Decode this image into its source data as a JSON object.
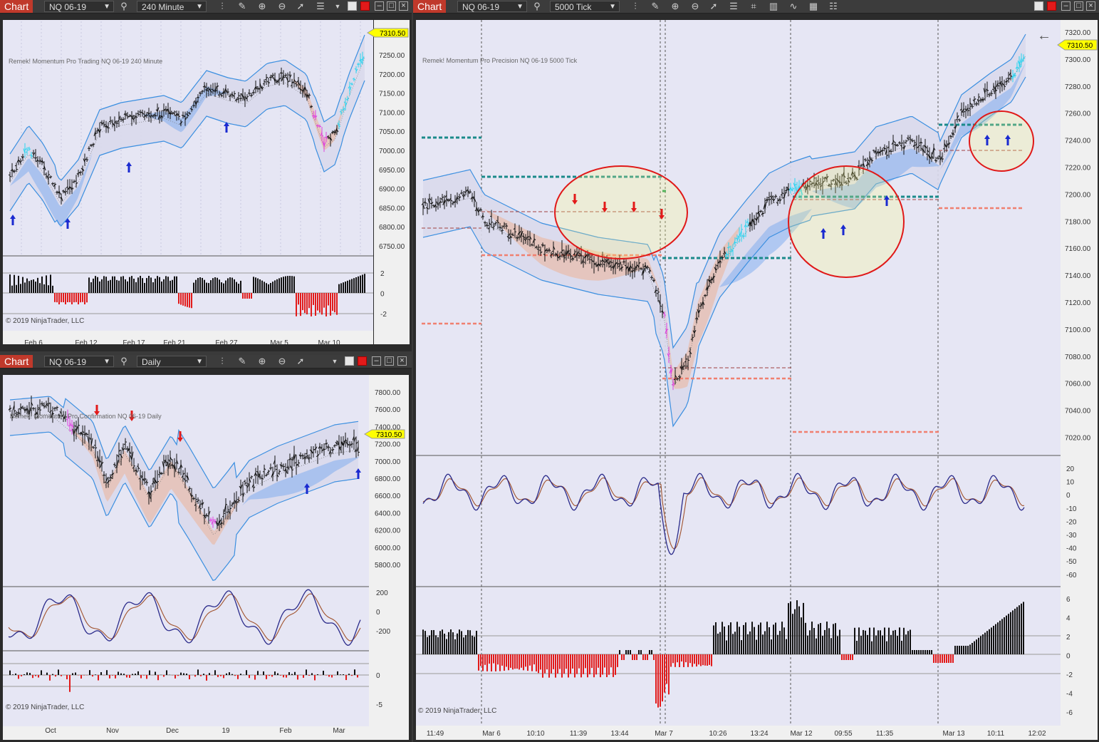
{
  "windows": [
    {
      "id": "w1",
      "title": "Chart",
      "instrument": "NQ 06-19",
      "period": "240 Minute",
      "indicator_label": "Remek!  Momentum Pro Trading  NQ 06-19  240 Minute",
      "copyright": "© 2019 NinjaTrader, LLC",
      "last_price": "7310.50",
      "price_ticks": [
        "7250.00",
        "7200.00",
        "7150.00",
        "7100.00",
        "7050.00",
        "7000.00",
        "6950.00",
        "6900.00",
        "6850.00",
        "6800.00",
        "6750.00"
      ],
      "sub_ticks": [
        "2",
        "0",
        "-2"
      ],
      "x_ticks": [
        "Feb 6",
        "Feb 12",
        "Feb 17",
        "Feb 21",
        "Feb 27",
        "Mar 5",
        "Mar 10"
      ]
    },
    {
      "id": "w2",
      "title": "Chart",
      "instrument": "NQ 06-19",
      "period": "Daily",
      "indicator_label": "Remek!  Momentum Pro Confirmation  NQ 06-19  Daily",
      "copyright": "© 2019 NinjaTrader, LLC",
      "last_price": "7310.50",
      "price_ticks": [
        "7800.00",
        "7600.00",
        "7400.00",
        "7200.00",
        "7000.00",
        "6800.00",
        "6600.00",
        "6400.00",
        "6200.00",
        "6000.00",
        "5800.00"
      ],
      "osc_ticks": [
        "200",
        "0",
        "-200"
      ],
      "sub_ticks": [
        "0",
        "-5"
      ],
      "x_ticks": [
        "Oct",
        "Nov",
        "Dec",
        "19",
        "Feb",
        "Mar"
      ]
    },
    {
      "id": "w3",
      "title": "Chart",
      "instrument": "NQ 06-19",
      "period": "5000 Tick",
      "indicator_label": "Remek!  Momentum Pro Precision  NQ 06-19  5000 Tick",
      "copyright": "© 2019 NinjaTrader, LLC",
      "last_price": "7310.50",
      "price_ticks": [
        "7320.00",
        "7300.00",
        "7280.00",
        "7260.00",
        "7240.00",
        "7220.00",
        "7200.00",
        "7180.00",
        "7160.00",
        "7140.00",
        "7120.00",
        "7100.00",
        "7080.00",
        "7060.00",
        "7040.00",
        "7020.00"
      ],
      "osc_ticks": [
        "20",
        "10",
        "0",
        "-10",
        "-20",
        "-30",
        "-40",
        "-50",
        "-60"
      ],
      "sub_ticks": [
        "6",
        "4",
        "2",
        "0",
        "-2",
        "-4",
        "-6"
      ],
      "x_ticks": [
        "11:49",
        "Mar 6",
        "10:10",
        "11:39",
        "13:44",
        "Mar 7",
        "10:26",
        "13:24",
        "Mar 12",
        "09:55",
        "11:35",
        "Mar 13",
        "10:11",
        "12:02"
      ]
    }
  ],
  "icons": [
    "crosshair-icon",
    "pencil-icon",
    "zoom-in-icon",
    "zoom-out-icon",
    "pointer-icon",
    "properties-icon",
    "back-arrow-icon"
  ],
  "colors": {
    "chart_bg": "#e6e6f4",
    "title_red": "#c0392b",
    "band_blue": "#3b8fe0",
    "bull_cyan": "#2ad4f0",
    "bear_magenta": "#e040e0",
    "hist_red": "#e21a1a",
    "hist_black": "#111111",
    "arrow_blue": "#1a2ad0",
    "arrow_red": "#e21a1a",
    "price_tag": "#ffff00",
    "level_teal": "#1a8a8a",
    "level_salmon": "#f08070"
  }
}
